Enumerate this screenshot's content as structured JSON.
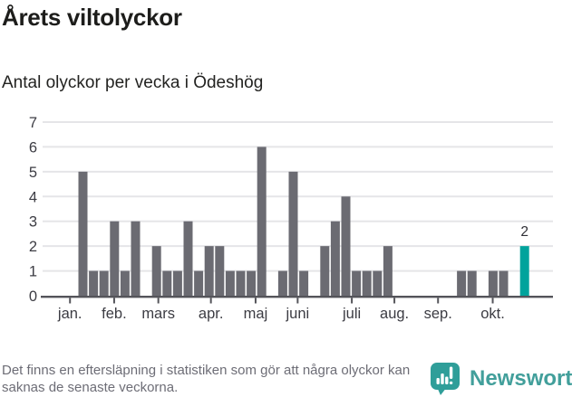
{
  "header": {
    "title": "Årets viltolyckor",
    "subtitle": "Antal olyckor per vecka i Ödeshög"
  },
  "footer": {
    "note": "Det finns en eftersläpning i statistiken som gör att några olyckor kan saknas de senaste veckorna."
  },
  "branding": {
    "name": "Newsworthy",
    "logo_icon": "bar-chart-speech-bubble-icon",
    "text_color": "#429f9b",
    "icon_color": "#2f9e99"
  },
  "chart_data": {
    "type": "bar",
    "title": "Årets viltolyckor",
    "subtitle": "Antal olyckor per vecka i Ödeshög",
    "xlabel": "",
    "ylabel": "",
    "x_unit": "vecka (ISO week)",
    "x": [
      1,
      2,
      3,
      4,
      5,
      6,
      7,
      8,
      9,
      10,
      11,
      12,
      13,
      14,
      15,
      16,
      17,
      18,
      19,
      20,
      21,
      22,
      23,
      24,
      25,
      26,
      27,
      28,
      29,
      30,
      31,
      32,
      33,
      34,
      35,
      36,
      37,
      38,
      39,
      40,
      41,
      42,
      43
    ],
    "values": [
      5,
      1,
      1,
      3,
      1,
      3,
      0,
      2,
      1,
      1,
      3,
      1,
      2,
      2,
      1,
      1,
      1,
      6,
      0,
      1,
      5,
      1,
      0,
      2,
      3,
      4,
      1,
      1,
      1,
      2,
      0,
      0,
      0,
      0,
      0,
      0,
      1,
      1,
      0,
      1,
      1,
      0,
      2
    ],
    "ylim": [
      0,
      7
    ],
    "yticks": [
      0,
      1,
      2,
      3,
      4,
      5,
      6,
      7
    ],
    "grid": true,
    "legend": "none",
    "bar_color": "#6b6b72",
    "grid_color": "#e5e5e8",
    "axis_color": "#54545a",
    "tick_label_color": "#3c3c43",
    "value_label_color": "#303036",
    "highlight": {
      "index": 42,
      "week": 43,
      "value": 2,
      "label": "2",
      "color": "#00a39c"
    },
    "month_ticks": [
      {
        "label": "jan.",
        "week": 0.2
      },
      {
        "label": "feb.",
        "week": 4.4
      },
      {
        "label": "mars",
        "week": 8.6
      },
      {
        "label": "apr.",
        "week": 13.6
      },
      {
        "label": "maj",
        "week": 17.85
      },
      {
        "label": "juni",
        "week": 21.85
      },
      {
        "label": "juli",
        "week": 27.0
      },
      {
        "label": "aug.",
        "week": 31.05
      },
      {
        "label": "sep.",
        "week": 35.2
      },
      {
        "label": "okt.",
        "week": 40.4
      }
    ]
  }
}
